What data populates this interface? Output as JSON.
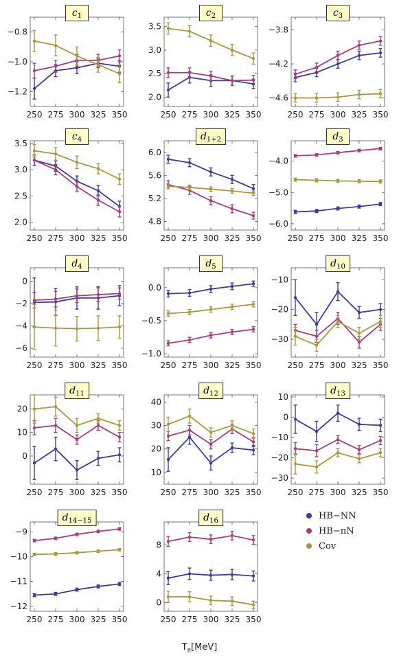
{
  "colors": {
    "HB-NN": "#3b3ba0",
    "HB-piN": "#a83c7c",
    "Cov": "#a89a3c"
  },
  "legend": [
    {
      "key": "HB-NN",
      "label": "HB−NN"
    },
    {
      "key": "HB-piN",
      "label": "HB−πN"
    },
    {
      "key": "Cov",
      "label": "Cov"
    }
  ],
  "xlabel": "Tπ[MeV]",
  "chart_data": [
    {
      "type": "line",
      "title_main": "c",
      "title_sub": "1",
      "x": [
        250,
        275,
        300,
        325,
        350
      ],
      "xticks": [
        250,
        275,
        300,
        325,
        350
      ],
      "ylim": [
        -1.3,
        -0.7
      ],
      "yticks": [
        -1.2,
        -1.0,
        -0.8
      ],
      "ytick_labels": [
        "−1.2",
        "−1.0",
        "−0.8"
      ],
      "series": [
        {
          "name": "HB-NN",
          "values": [
            -1.18,
            -1.06,
            -1.04,
            -1.01,
            -1.03
          ],
          "errors": [
            0.07,
            0.04,
            0.04,
            0.03,
            0.04
          ]
        },
        {
          "name": "HB-piN",
          "values": [
            -1.06,
            -1.03,
            -0.99,
            -0.99,
            -0.96
          ],
          "errors": [
            0.05,
            0.04,
            0.04,
            0.04,
            0.04
          ]
        },
        {
          "name": "Cov",
          "values": [
            -0.86,
            -0.89,
            -0.96,
            -1.02,
            -1.08
          ],
          "errors": [
            0.07,
            0.07,
            0.06,
            0.05,
            0.06
          ]
        }
      ]
    },
    {
      "type": "line",
      "title_main": "c",
      "title_sub": "2",
      "x": [
        250,
        275,
        300,
        325,
        350
      ],
      "xticks": [
        250,
        275,
        300,
        325,
        350
      ],
      "ylim": [
        1.8,
        3.7
      ],
      "yticks": [
        2.0,
        2.5,
        3.0,
        3.5
      ],
      "ytick_labels": [
        "2.0",
        "2.5",
        "3.0",
        "3.5"
      ],
      "series": [
        {
          "name": "HB-NN",
          "values": [
            2.15,
            2.42,
            2.35,
            2.35,
            2.28
          ],
          "errors": [
            0.15,
            0.12,
            0.12,
            0.1,
            0.1
          ]
        },
        {
          "name": "HB-piN",
          "values": [
            2.52,
            2.52,
            2.45,
            2.35,
            2.36
          ],
          "errors": [
            0.1,
            0.1,
            0.1,
            0.1,
            0.1
          ]
        },
        {
          "name": "Cov",
          "values": [
            3.46,
            3.4,
            3.2,
            3.0,
            2.82
          ],
          "errors": [
            0.12,
            0.12,
            0.12,
            0.12,
            0.12
          ]
        }
      ]
    },
    {
      "type": "line",
      "title_main": "c",
      "title_sub": "3",
      "x": [
        250,
        275,
        300,
        325,
        350
      ],
      "xticks": [
        250,
        275,
        300,
        325,
        350
      ],
      "ylim": [
        -4.7,
        -3.65
      ],
      "yticks": [
        -4.6,
        -4.2,
        -3.8
      ],
      "ytick_labels": [
        "−4.6",
        "−4.2",
        "−3.8"
      ],
      "series": [
        {
          "name": "HB-NN",
          "values": [
            -4.36,
            -4.3,
            -4.2,
            -4.1,
            -4.07
          ],
          "errors": [
            0.05,
            0.05,
            0.05,
            0.05,
            0.05
          ]
        },
        {
          "name": "HB-piN",
          "values": [
            -4.32,
            -4.24,
            -4.1,
            -3.98,
            -3.93
          ],
          "errors": [
            0.05,
            0.05,
            0.05,
            0.05,
            0.05
          ]
        },
        {
          "name": "Cov",
          "values": [
            -4.6,
            -4.6,
            -4.59,
            -4.56,
            -4.55
          ],
          "errors": [
            0.05,
            0.05,
            0.05,
            0.05,
            0.05
          ]
        }
      ]
    },
    {
      "type": "line",
      "title_main": "c",
      "title_sub": "4",
      "x": [
        250,
        275,
        300,
        325,
        350
      ],
      "xticks": [
        250,
        275,
        300,
        325,
        350
      ],
      "ylim": [
        1.85,
        3.55
      ],
      "yticks": [
        2.0,
        2.5,
        3.0,
        3.5
      ],
      "ytick_labels": [
        "2.0",
        "2.5",
        "3.0",
        "3.5"
      ],
      "series": [
        {
          "name": "HB-NN",
          "values": [
            3.18,
            3.07,
            2.78,
            2.6,
            2.3
          ],
          "errors": [
            0.1,
            0.1,
            0.1,
            0.1,
            0.1
          ]
        },
        {
          "name": "HB-piN",
          "values": [
            3.18,
            3.0,
            2.68,
            2.42,
            2.2
          ],
          "errors": [
            0.1,
            0.1,
            0.1,
            0.1,
            0.1
          ]
        },
        {
          "name": "Cov",
          "values": [
            3.36,
            3.3,
            3.14,
            3.02,
            2.82
          ],
          "errors": [
            0.12,
            0.12,
            0.12,
            0.1,
            0.1
          ]
        }
      ]
    },
    {
      "type": "line",
      "title_main": "d",
      "title_sub": "1+2",
      "x": [
        250,
        275,
        300,
        325,
        350
      ],
      "xticks": [
        250,
        275,
        300,
        325,
        350
      ],
      "ylim": [
        4.65,
        6.2
      ],
      "yticks": [
        4.8,
        5.2,
        5.6,
        6.0
      ],
      "ytick_labels": [
        "4.8",
        "5.2",
        "5.6",
        "6.0"
      ],
      "series": [
        {
          "name": "HB-NN",
          "values": [
            5.88,
            5.82,
            5.66,
            5.53,
            5.37
          ],
          "errors": [
            0.07,
            0.07,
            0.07,
            0.07,
            0.07
          ]
        },
        {
          "name": "HB-piN",
          "values": [
            5.44,
            5.34,
            5.16,
            5.02,
            4.9
          ],
          "errors": [
            0.07,
            0.07,
            0.07,
            0.07,
            0.06
          ]
        },
        {
          "name": "Cov",
          "values": [
            5.41,
            5.39,
            5.36,
            5.33,
            5.29
          ],
          "errors": [
            0.04,
            0.04,
            0.04,
            0.04,
            0.04
          ]
        }
      ]
    },
    {
      "type": "line",
      "title_main": "d",
      "title_sub": "3",
      "x": [
        250,
        275,
        300,
        325,
        350
      ],
      "xticks": [
        250,
        275,
        300,
        325,
        350
      ],
      "ylim": [
        -6.2,
        -3.35
      ],
      "yticks": [
        -6.0,
        -5.0,
        -4.0
      ],
      "ytick_labels": [
        "−6.0",
        "−5.0",
        "−4.0"
      ],
      "series": [
        {
          "name": "HB-NN",
          "values": [
            -5.62,
            -5.59,
            -5.51,
            -5.45,
            -5.37
          ],
          "errors": [
            0.05,
            0.05,
            0.05,
            0.05,
            0.05
          ]
        },
        {
          "name": "HB-piN",
          "values": [
            -3.83,
            -3.8,
            -3.73,
            -3.66,
            -3.6
          ],
          "errors": [
            0.04,
            0.04,
            0.04,
            0.04,
            0.04
          ]
        },
        {
          "name": "Cov",
          "values": [
            -4.59,
            -4.61,
            -4.63,
            -4.64,
            -4.65
          ],
          "errors": [
            0.05,
            0.05,
            0.05,
            0.05,
            0.05
          ]
        }
      ]
    },
    {
      "type": "line",
      "title_main": "d",
      "title_sub": "4",
      "x": [
        250,
        275,
        300,
        325,
        350
      ],
      "xticks": [
        250,
        275,
        300,
        325,
        350
      ],
      "ylim": [
        -6.8,
        1.2
      ],
      "yticks": [
        -6,
        -4,
        -2,
        0
      ],
      "ytick_labels": [
        "−6",
        "−4",
        "−2",
        "0"
      ],
      "series": [
        {
          "name": "HB-NN",
          "values": [
            -1.9,
            -1.85,
            -1.5,
            -1.5,
            -1.3
          ],
          "errors": [
            2.2,
            1.2,
            1.0,
            1.0,
            0.9
          ]
        },
        {
          "name": "HB-piN",
          "values": [
            -1.7,
            -1.6,
            -1.3,
            -1.2,
            -1.1
          ],
          "errors": [
            0.7,
            0.7,
            0.6,
            0.6,
            0.5
          ]
        },
        {
          "name": "Cov",
          "values": [
            -4.1,
            -4.2,
            -4.25,
            -4.2,
            -4.1
          ],
          "errors": [
            2.0,
            1.6,
            1.1,
            1.1,
            1.0
          ]
        }
      ]
    },
    {
      "type": "line",
      "title_main": "d",
      "title_sub": "5",
      "x": [
        250,
        275,
        300,
        325,
        350
      ],
      "xticks": [
        250,
        275,
        300,
        325,
        350
      ],
      "ylim": [
        -1.05,
        0.3
      ],
      "yticks": [
        -1.0,
        -0.5,
        0.0
      ],
      "ytick_labels": [
        "−1.0",
        "−0.5",
        "0.0"
      ],
      "series": [
        {
          "name": "HB-NN",
          "values": [
            -0.09,
            -0.08,
            -0.02,
            0.02,
            0.06
          ],
          "errors": [
            0.05,
            0.05,
            0.05,
            0.05,
            0.04
          ]
        },
        {
          "name": "HB-piN",
          "values": [
            -0.84,
            -0.79,
            -0.72,
            -0.67,
            -0.63
          ],
          "errors": [
            0.04,
            0.04,
            0.04,
            0.04,
            0.04
          ]
        },
        {
          "name": "Cov",
          "values": [
            -0.39,
            -0.37,
            -0.33,
            -0.29,
            -0.25
          ],
          "errors": [
            0.04,
            0.04,
            0.04,
            0.04,
            0.04
          ]
        }
      ]
    },
    {
      "type": "line",
      "title_main": "d",
      "title_sub": "10",
      "x": [
        250,
        275,
        300,
        325,
        350
      ],
      "xticks": [
        250,
        275,
        300,
        325,
        350
      ],
      "ylim": [
        -36,
        -6
      ],
      "yticks": [
        -30,
        -20,
        -10
      ],
      "ytick_labels": [
        "−30",
        "−20",
        "−10"
      ],
      "series": [
        {
          "name": "HB-NN",
          "values": [
            -16,
            -25,
            -14,
            -21,
            -20
          ],
          "errors": [
            6,
            4,
            3,
            2,
            2
          ]
        },
        {
          "name": "HB-piN",
          "values": [
            -27,
            -29,
            -23,
            -31,
            -25
          ],
          "errors": [
            2,
            2,
            2,
            2,
            2
          ]
        },
        {
          "name": "Cov",
          "values": [
            -29,
            -32,
            -24,
            -28,
            -24
          ],
          "errors": [
            3,
            2,
            2,
            2,
            2
          ]
        }
      ]
    },
    {
      "type": "line",
      "title_main": "d",
      "title_sub": "11",
      "x": [
        250,
        275,
        300,
        325,
        350
      ],
      "xticks": [
        250,
        275,
        300,
        325,
        350
      ],
      "ylim": [
        -12,
        26
      ],
      "yticks": [
        0,
        10,
        20
      ],
      "ytick_labels": [
        "0",
        "10",
        "20"
      ],
      "series": [
        {
          "name": "HB-NN",
          "values": [
            -3,
            3,
            -6,
            -1,
            0.5
          ],
          "errors": [
            7,
            5,
            4,
            3,
            3
          ]
        },
        {
          "name": "HB-piN",
          "values": [
            12,
            13,
            7,
            13,
            8
          ],
          "errors": [
            3,
            3,
            2,
            2,
            2
          ]
        },
        {
          "name": "Cov",
          "values": [
            20,
            21,
            13,
            16,
            13
          ],
          "errors": [
            6,
            4,
            3,
            2,
            2
          ]
        }
      ]
    },
    {
      "type": "line",
      "title_main": "d",
      "title_sub": "12",
      "x": [
        250,
        275,
        300,
        325,
        350
      ],
      "xticks": [
        250,
        275,
        300,
        325,
        350
      ],
      "ylim": [
        5,
        43
      ],
      "yticks": [
        10,
        20,
        30,
        40
      ],
      "ytick_labels": [
        "10",
        "20",
        "30",
        "40"
      ],
      "series": [
        {
          "name": "HB-NN",
          "values": [
            15.5,
            25,
            14,
            20.5,
            19.5
          ],
          "errors": [
            5,
            3,
            3,
            2,
            2
          ]
        },
        {
          "name": "HB-piN",
          "values": [
            25.5,
            28,
            22,
            28.5,
            23
          ],
          "errors": [
            2,
            2,
            2,
            2,
            2
          ]
        },
        {
          "name": "Cov",
          "values": [
            30.5,
            34,
            27,
            30,
            26.5
          ],
          "errors": [
            3,
            3,
            2,
            2,
            2
          ]
        }
      ]
    },
    {
      "type": "line",
      "title_main": "d",
      "title_sub": "13",
      "x": [
        250,
        275,
        300,
        325,
        350
      ],
      "xticks": [
        250,
        275,
        300,
        325,
        350
      ],
      "ylim": [
        -33,
        11
      ],
      "yticks": [
        -30,
        -20,
        -10,
        0,
        10
      ],
      "ytick_labels": [
        "−30",
        "−20",
        "−10",
        "0",
        "10"
      ],
      "series": [
        {
          "name": "HB-NN",
          "values": [
            -1,
            -7,
            2,
            -3.5,
            -4
          ],
          "errors": [
            7,
            5,
            4,
            3,
            3
          ]
        },
        {
          "name": "HB-piN",
          "values": [
            -15.5,
            -16.5,
            -11,
            -16,
            -11.5
          ],
          "errors": [
            3,
            3,
            2,
            2,
            2
          ]
        },
        {
          "name": "Cov",
          "values": [
            -23,
            -24.5,
            -17.5,
            -20.5,
            -17.5
          ],
          "errors": [
            5,
            3,
            2,
            2,
            2
          ]
        }
      ]
    },
    {
      "type": "line",
      "title_main": "d",
      "title_sub": "14−15",
      "x": [
        250,
        275,
        300,
        325,
        350
      ],
      "xticks": [
        250,
        275,
        300,
        325,
        350
      ],
      "ylim": [
        -12.2,
        -8.6
      ],
      "yticks": [
        -12,
        -11,
        -10,
        -9
      ],
      "ytick_labels": [
        "−12",
        "−11",
        "−10",
        "−9"
      ],
      "series": [
        {
          "name": "HB-NN",
          "values": [
            -11.55,
            -11.5,
            -11.33,
            -11.2,
            -11.1
          ],
          "errors": [
            0.06,
            0.06,
            0.06,
            0.06,
            0.06
          ]
        },
        {
          "name": "HB-piN",
          "values": [
            -9.35,
            -9.26,
            -9.1,
            -8.98,
            -8.88
          ],
          "errors": [
            0.05,
            0.05,
            0.05,
            0.05,
            0.05
          ]
        },
        {
          "name": "Cov",
          "values": [
            -9.91,
            -9.89,
            -9.84,
            -9.78,
            -9.72
          ],
          "errors": [
            0.05,
            0.05,
            0.05,
            0.05,
            0.05
          ]
        }
      ]
    },
    {
      "type": "line",
      "title_main": "d",
      "title_sub": "16",
      "x": [
        250,
        275,
        300,
        325,
        350
      ],
      "xticks": [
        250,
        275,
        300,
        325,
        350
      ],
      "ylim": [
        -1.2,
        11.2
      ],
      "yticks": [
        0,
        4,
        8
      ],
      "ytick_labels": [
        "0",
        "4",
        "8"
      ],
      "series": [
        {
          "name": "HB-NN",
          "values": [
            3.4,
            4.0,
            3.8,
            3.9,
            3.7
          ],
          "errors": [
            0.9,
            0.8,
            0.7,
            0.7,
            0.7
          ]
        },
        {
          "name": "HB-piN",
          "values": [
            8.5,
            9.1,
            8.8,
            9.3,
            8.7
          ],
          "errors": [
            0.7,
            0.6,
            0.6,
            0.6,
            0.6
          ]
        },
        {
          "name": "Cov",
          "values": [
            0.8,
            0.8,
            0.3,
            0.2,
            -0.3
          ],
          "errors": [
            0.8,
            0.7,
            0.6,
            0.6,
            0.5
          ]
        }
      ]
    }
  ]
}
